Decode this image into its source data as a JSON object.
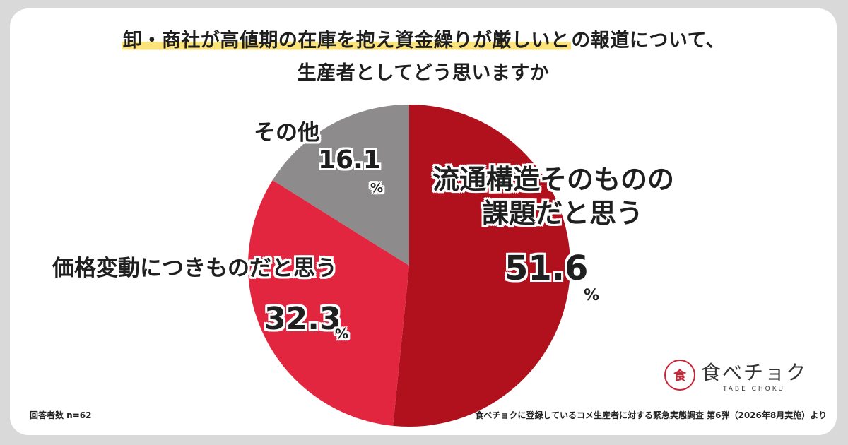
{
  "title_line1_highlight": "卸・商社が高値期の在庫を抱え資金繰りが厳しいと",
  "title_line1_rest": "の報道について、",
  "title_line2": "生産者としてどう思いますか",
  "chart_data": {
    "type": "pie",
    "slices": [
      {
        "label_line1": "流通構造そのものの",
        "label_line2": "課題だと思う",
        "value": 51.6,
        "value_text": "51.6",
        "color": "#b0111d"
      },
      {
        "label": "価格変動につきものだと思う",
        "value": 32.3,
        "value_text": "32.3",
        "color": "#e22640"
      },
      {
        "label": "その他",
        "value": 16.1,
        "value_text": "16.1",
        "color": "#8e8b8d"
      }
    ],
    "percent_sign": "%"
  },
  "footnote_left": "回答者数 n=62",
  "footnote_right": "食べチョクに登録しているコメ生産者に対する緊急実態調査 第6弾（2026年8月実施）より",
  "logo": {
    "mark": "食",
    "name": "食べチョク",
    "sub": "TABE CHOKU",
    "brand_color": "#c92437"
  }
}
